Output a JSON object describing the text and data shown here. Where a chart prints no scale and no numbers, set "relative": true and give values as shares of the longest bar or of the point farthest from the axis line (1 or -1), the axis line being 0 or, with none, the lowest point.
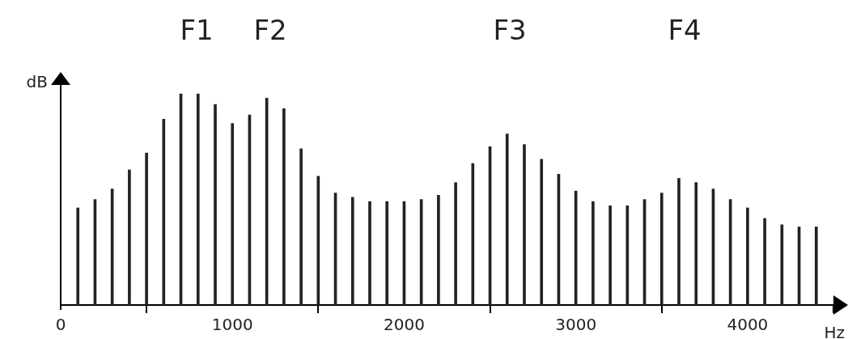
{
  "chart_data": {
    "type": "bar",
    "relative": true,
    "xlabel": "Hz",
    "ylabel": "dB",
    "color": "#222222",
    "grid": false,
    "legend": false,
    "x": [
      100,
      200,
      300,
      400,
      500,
      600,
      700,
      800,
      900,
      1000,
      1100,
      1200,
      1300,
      1400,
      1500,
      1600,
      1700,
      1800,
      1900,
      2000,
      2100,
      2200,
      2300,
      2400,
      2500,
      2600,
      2700,
      2800,
      2900,
      3000,
      3100,
      3200,
      3300,
      3400,
      3500,
      3600,
      3700,
      3800,
      3900,
      4000,
      4100,
      4200,
      4300,
      4400
    ],
    "values": [
      0.46,
      0.5,
      0.55,
      0.64,
      0.72,
      0.88,
      1,
      1,
      0.95,
      0.86,
      0.9,
      0.98,
      0.93,
      0.74,
      0.61,
      0.53,
      0.51,
      0.49,
      0.49,
      0.49,
      0.5,
      0.52,
      0.58,
      0.67,
      0.75,
      0.81,
      0.76,
      0.69,
      0.62,
      0.54,
      0.49,
      0.47,
      0.47,
      0.5,
      0.53,
      0.6,
      0.58,
      0.55,
      0.5,
      0.46,
      0.41,
      0.38,
      0.37,
      0.37
    ],
    "xlim": [
      0,
      4500
    ],
    "xticks": [
      0,
      1000,
      2000,
      3000,
      4000
    ],
    "annotations": [
      "F1",
      "F2",
      "F3",
      "F4"
    ]
  }
}
